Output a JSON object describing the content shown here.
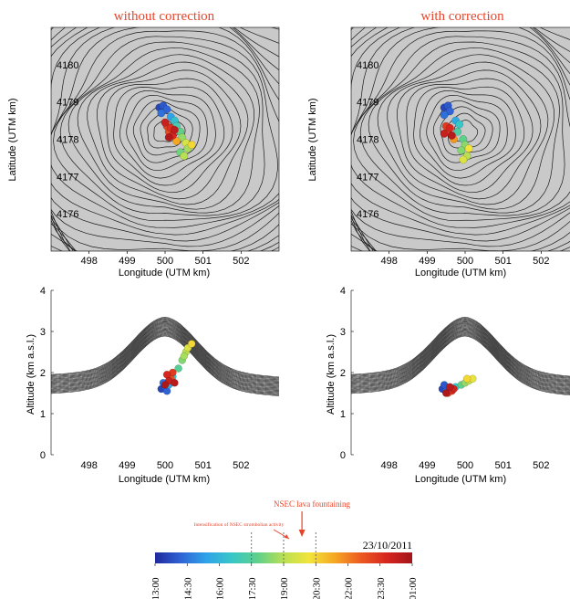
{
  "figure": {
    "colors": {
      "title": "#e8442a",
      "annotation_arrow": "#e8442a",
      "map_background": "#c9c9c9",
      "contour": "#1a1a1a",
      "cross_section": "#2b2b2b",
      "axis": "#000000"
    },
    "colormap": [
      "#1f2a9c",
      "#2f63d6",
      "#2fa3e8",
      "#38c7c7",
      "#5fd08a",
      "#b9e052",
      "#f2e43a",
      "#f5a623",
      "#ec5a22",
      "#d7261e",
      "#a3141a"
    ]
  },
  "panels": [
    {
      "id": "map-without",
      "title": "without correction",
      "xlabel": "Longitude (UTM km)",
      "ylabel": "Latitude (UTM km)"
    },
    {
      "id": "map-with",
      "title": "with correction",
      "xlabel": "Longitude (UTM km)",
      "ylabel": "Latitude (UTM km)"
    },
    {
      "id": "section-without",
      "xlabel": "Longitude (UTM km)",
      "ylabel": "Altitude (km a.s.l.)"
    },
    {
      "id": "section-with",
      "xlabel": "Longitude (UTM km)",
      "ylabel": "Altitude (km a.s.l.)"
    }
  ],
  "colorbar": {
    "date": "23/10/2011",
    "tick_labels": [
      "13:00",
      "14:30",
      "16:00",
      "17:30",
      "19:00",
      "20:30",
      "22:00",
      "23:30",
      "01:00"
    ],
    "markers": [
      17.5,
      19.0,
      20.5
    ],
    "annotations": [
      {
        "text": "Intensification of NSEC strombolian activity",
        "time": 19.0
      },
      {
        "text": "NSEC lava fountaining",
        "time": 19.6
      }
    ]
  },
  "chart_data": [
    {
      "type": "scatter",
      "panel": "map-without",
      "title": "without correction",
      "xlabel": "Longitude (UTM km)",
      "ylabel": "Latitude (UTM km)",
      "xlim": [
        497.0,
        503.0
      ],
      "ylim": [
        4175.0,
        4181.0
      ],
      "x_ticks": [
        498,
        499,
        500,
        501,
        502
      ],
      "y_ticks": [
        4176,
        4177,
        4178,
        4179,
        4180
      ],
      "color_scale": "time (13:00–01:00)",
      "points": [
        {
          "x": 499.85,
          "y": 4178.85,
          "t": 0.05
        },
        {
          "x": 499.95,
          "y": 4178.9,
          "t": 0.08
        },
        {
          "x": 500.05,
          "y": 4178.8,
          "t": 0.1
        },
        {
          "x": 499.9,
          "y": 4178.7,
          "t": 0.12
        },
        {
          "x": 500.15,
          "y": 4178.6,
          "t": 0.2
        },
        {
          "x": 500.25,
          "y": 4178.5,
          "t": 0.28
        },
        {
          "x": 500.3,
          "y": 4178.35,
          "t": 0.34
        },
        {
          "x": 500.4,
          "y": 4178.2,
          "t": 0.4
        },
        {
          "x": 500.45,
          "y": 4178.05,
          "t": 0.46
        },
        {
          "x": 500.55,
          "y": 4177.9,
          "t": 0.55
        },
        {
          "x": 500.6,
          "y": 4177.75,
          "t": 0.48
        },
        {
          "x": 500.4,
          "y": 4177.65,
          "t": 0.42
        },
        {
          "x": 500.5,
          "y": 4177.55,
          "t": 0.5
        },
        {
          "x": 500.7,
          "y": 4177.85,
          "t": 0.62
        },
        {
          "x": 500.3,
          "y": 4177.95,
          "t": 0.7
        },
        {
          "x": 500.1,
          "y": 4178.2,
          "t": 0.82
        },
        {
          "x": 500.05,
          "y": 4178.35,
          "t": 0.85
        },
        {
          "x": 500.15,
          "y": 4178.3,
          "t": 0.88
        },
        {
          "x": 500.2,
          "y": 4178.1,
          "t": 0.9
        },
        {
          "x": 500.0,
          "y": 4178.45,
          "t": 0.93
        },
        {
          "x": 500.25,
          "y": 4178.25,
          "t": 0.95
        },
        {
          "x": 500.1,
          "y": 4178.05,
          "t": 0.97
        }
      ]
    },
    {
      "type": "scatter",
      "panel": "map-with",
      "title": "with correction",
      "xlabel": "Longitude (UTM km)",
      "ylabel": "Latitude (UTM km)",
      "xlim": [
        497.0,
        503.0
      ],
      "ylim": [
        4175.0,
        4181.0
      ],
      "x_ticks": [
        498,
        499,
        500,
        501,
        502
      ],
      "y_ticks": [
        4176,
        4177,
        4178,
        4179,
        4180
      ],
      "color_scale": "time (13:00–01:00)",
      "points": [
        {
          "x": 499.45,
          "y": 4178.85,
          "t": 0.05
        },
        {
          "x": 499.55,
          "y": 4178.9,
          "t": 0.08
        },
        {
          "x": 499.6,
          "y": 4178.75,
          "t": 0.1
        },
        {
          "x": 499.45,
          "y": 4178.65,
          "t": 0.12
        },
        {
          "x": 499.75,
          "y": 4178.5,
          "t": 0.22
        },
        {
          "x": 499.85,
          "y": 4178.4,
          "t": 0.3
        },
        {
          "x": 499.8,
          "y": 4178.2,
          "t": 0.36
        },
        {
          "x": 499.95,
          "y": 4178.0,
          "t": 0.4
        },
        {
          "x": 500.0,
          "y": 4177.85,
          "t": 0.45
        },
        {
          "x": 499.9,
          "y": 4177.7,
          "t": 0.44
        },
        {
          "x": 500.05,
          "y": 4177.55,
          "t": 0.5
        },
        {
          "x": 499.95,
          "y": 4177.45,
          "t": 0.56
        },
        {
          "x": 500.1,
          "y": 4177.75,
          "t": 0.6
        },
        {
          "x": 499.7,
          "y": 4178.0,
          "t": 0.72
        },
        {
          "x": 499.55,
          "y": 4178.2,
          "t": 0.82
        },
        {
          "x": 499.5,
          "y": 4178.35,
          "t": 0.86
        },
        {
          "x": 499.6,
          "y": 4178.3,
          "t": 0.9
        },
        {
          "x": 499.45,
          "y": 4178.15,
          "t": 0.93
        },
        {
          "x": 499.65,
          "y": 4178.1,
          "t": 0.96
        }
      ]
    },
    {
      "type": "scatter",
      "panel": "section-without",
      "xlabel": "Longitude (UTM km)",
      "ylabel": "Altitude (km a.s.l.)",
      "xlim": [
        497.0,
        503.0
      ],
      "ylim": [
        0,
        4
      ],
      "x_ticks": [
        498,
        499,
        500,
        501,
        502
      ],
      "y_ticks": [
        0,
        1,
        2,
        3,
        4
      ],
      "color_scale": "time (13:00–01:00)",
      "points": [
        {
          "x": 499.9,
          "y": 1.6,
          "t": 0.05
        },
        {
          "x": 500.0,
          "y": 1.65,
          "t": 0.08
        },
        {
          "x": 499.95,
          "y": 1.75,
          "t": 0.12
        },
        {
          "x": 500.05,
          "y": 1.55,
          "t": 0.1
        },
        {
          "x": 500.1,
          "y": 1.7,
          "t": 0.22
        },
        {
          "x": 500.2,
          "y": 1.9,
          "t": 0.3
        },
        {
          "x": 500.35,
          "y": 2.1,
          "t": 0.38
        },
        {
          "x": 500.45,
          "y": 2.3,
          "t": 0.44
        },
        {
          "x": 500.55,
          "y": 2.5,
          "t": 0.5
        },
        {
          "x": 500.6,
          "y": 2.6,
          "t": 0.56
        },
        {
          "x": 500.7,
          "y": 2.7,
          "t": 0.62
        },
        {
          "x": 500.5,
          "y": 2.4,
          "t": 0.48
        },
        {
          "x": 500.15,
          "y": 1.85,
          "t": 0.82
        },
        {
          "x": 500.2,
          "y": 2.0,
          "t": 0.86
        },
        {
          "x": 500.05,
          "y": 1.95,
          "t": 0.9
        },
        {
          "x": 500.1,
          "y": 1.8,
          "t": 0.93
        },
        {
          "x": 500.25,
          "y": 1.75,
          "t": 0.96
        },
        {
          "x": 500.0,
          "y": 1.7,
          "t": 0.98
        }
      ]
    },
    {
      "type": "scatter",
      "panel": "section-with",
      "xlabel": "Longitude (UTM km)",
      "ylabel": "Altitude (km a.s.l.)",
      "xlim": [
        497.0,
        503.0
      ],
      "ylim": [
        0,
        4
      ],
      "x_ticks": [
        498,
        499,
        500,
        501,
        502
      ],
      "y_ticks": [
        0,
        1,
        2,
        3,
        4
      ],
      "color_scale": "time (13:00–01:00)",
      "points": [
        {
          "x": 499.4,
          "y": 1.6,
          "t": 0.05
        },
        {
          "x": 499.45,
          "y": 1.7,
          "t": 0.08
        },
        {
          "x": 499.5,
          "y": 1.55,
          "t": 0.1
        },
        {
          "x": 499.6,
          "y": 1.6,
          "t": 0.14
        },
        {
          "x": 499.75,
          "y": 1.65,
          "t": 0.3
        },
        {
          "x": 499.9,
          "y": 1.7,
          "t": 0.4
        },
        {
          "x": 500.0,
          "y": 1.75,
          "t": 0.46
        },
        {
          "x": 500.1,
          "y": 1.8,
          "t": 0.52
        },
        {
          "x": 500.2,
          "y": 1.85,
          "t": 0.58
        },
        {
          "x": 500.05,
          "y": 1.85,
          "t": 0.62
        },
        {
          "x": 499.55,
          "y": 1.5,
          "t": 0.82
        },
        {
          "x": 499.65,
          "y": 1.55,
          "t": 0.88
        },
        {
          "x": 499.7,
          "y": 1.6,
          "t": 0.92
        },
        {
          "x": 499.6,
          "y": 1.65,
          "t": 0.96
        },
        {
          "x": 499.5,
          "y": 1.5,
          "t": 0.98
        }
      ]
    }
  ]
}
